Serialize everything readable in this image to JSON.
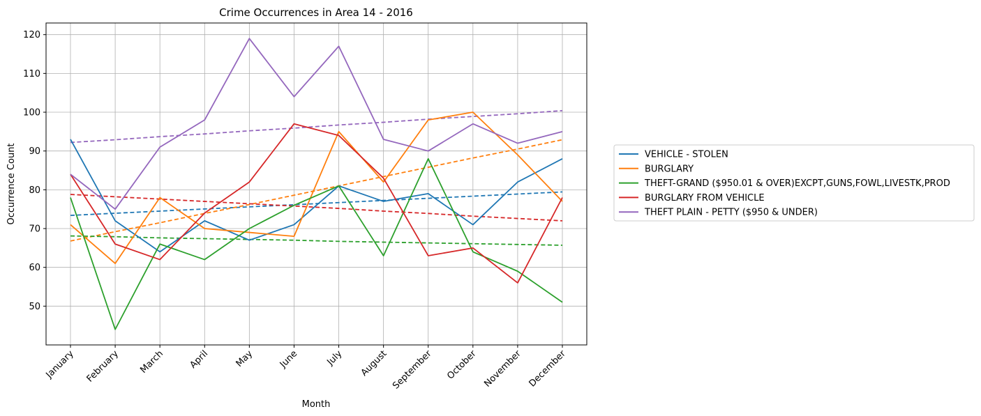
{
  "chart_data": {
    "type": "line",
    "title": "Crime Occurrences in Area 14 - 2016",
    "xlabel": "Month",
    "ylabel": "Occurrence Count",
    "categories": [
      "January",
      "February",
      "March",
      "April",
      "May",
      "June",
      "July",
      "August",
      "September",
      "October",
      "November",
      "December"
    ],
    "ylim": [
      40,
      123
    ],
    "yticks": [
      50,
      60,
      70,
      80,
      90,
      100,
      110,
      120
    ],
    "grid": true,
    "legend_position": "right",
    "series": [
      {
        "name": "VEHICLE - STOLEN",
        "color": "#1f77b4",
        "values": [
          93,
          72,
          64,
          72,
          67,
          71,
          81,
          77,
          79,
          71,
          82,
          88
        ],
        "trend": [
          73.4,
          73.95,
          74.5,
          75.05,
          75.6,
          76.15,
          76.7,
          77.25,
          77.8,
          78.35,
          78.9,
          79.45
        ]
      },
      {
        "name": "BURGLARY",
        "color": "#ff7f0e",
        "values": [
          71,
          61,
          78,
          70,
          69,
          68,
          95,
          82,
          98,
          100,
          89,
          77
        ],
        "trend": [
          66.8,
          69.2,
          71.5,
          73.9,
          76.2,
          78.6,
          81.0,
          83.4,
          85.8,
          88.2,
          90.5,
          92.9
        ]
      },
      {
        "name": "THEFT-GRAND ($950.01 & OVER)EXCPT,GUNS,FOWL,LIVESTK,PROD",
        "color": "#2ca02c",
        "values": [
          78,
          44,
          66,
          62,
          70,
          76,
          81,
          63,
          88,
          64,
          59,
          51
        ],
        "trend": [
          68.1,
          67.9,
          67.6,
          67.4,
          67.2,
          67.0,
          66.7,
          66.5,
          66.3,
          66.1,
          65.9,
          65.7
        ]
      },
      {
        "name": "BURGLARY FROM VEHICLE",
        "color": "#d62728",
        "values": [
          84,
          66,
          62,
          74,
          82,
          97,
          94,
          83,
          63,
          65,
          56,
          78
        ],
        "trend": [
          78.8,
          78.2,
          77.6,
          77.0,
          76.4,
          75.8,
          75.2,
          74.5,
          73.9,
          73.2,
          72.6,
          72.0
        ]
      },
      {
        "name": "THEFT PLAIN - PETTY ($950 & UNDER)",
        "color": "#9467bd",
        "values": [
          84,
          75,
          91,
          98,
          119,
          104,
          117,
          93,
          90,
          97,
          92,
          95
        ],
        "trend": [
          92.2,
          92.9,
          93.7,
          94.4,
          95.2,
          95.9,
          96.7,
          97.4,
          98.2,
          98.9,
          99.6,
          100.4
        ]
      }
    ]
  }
}
